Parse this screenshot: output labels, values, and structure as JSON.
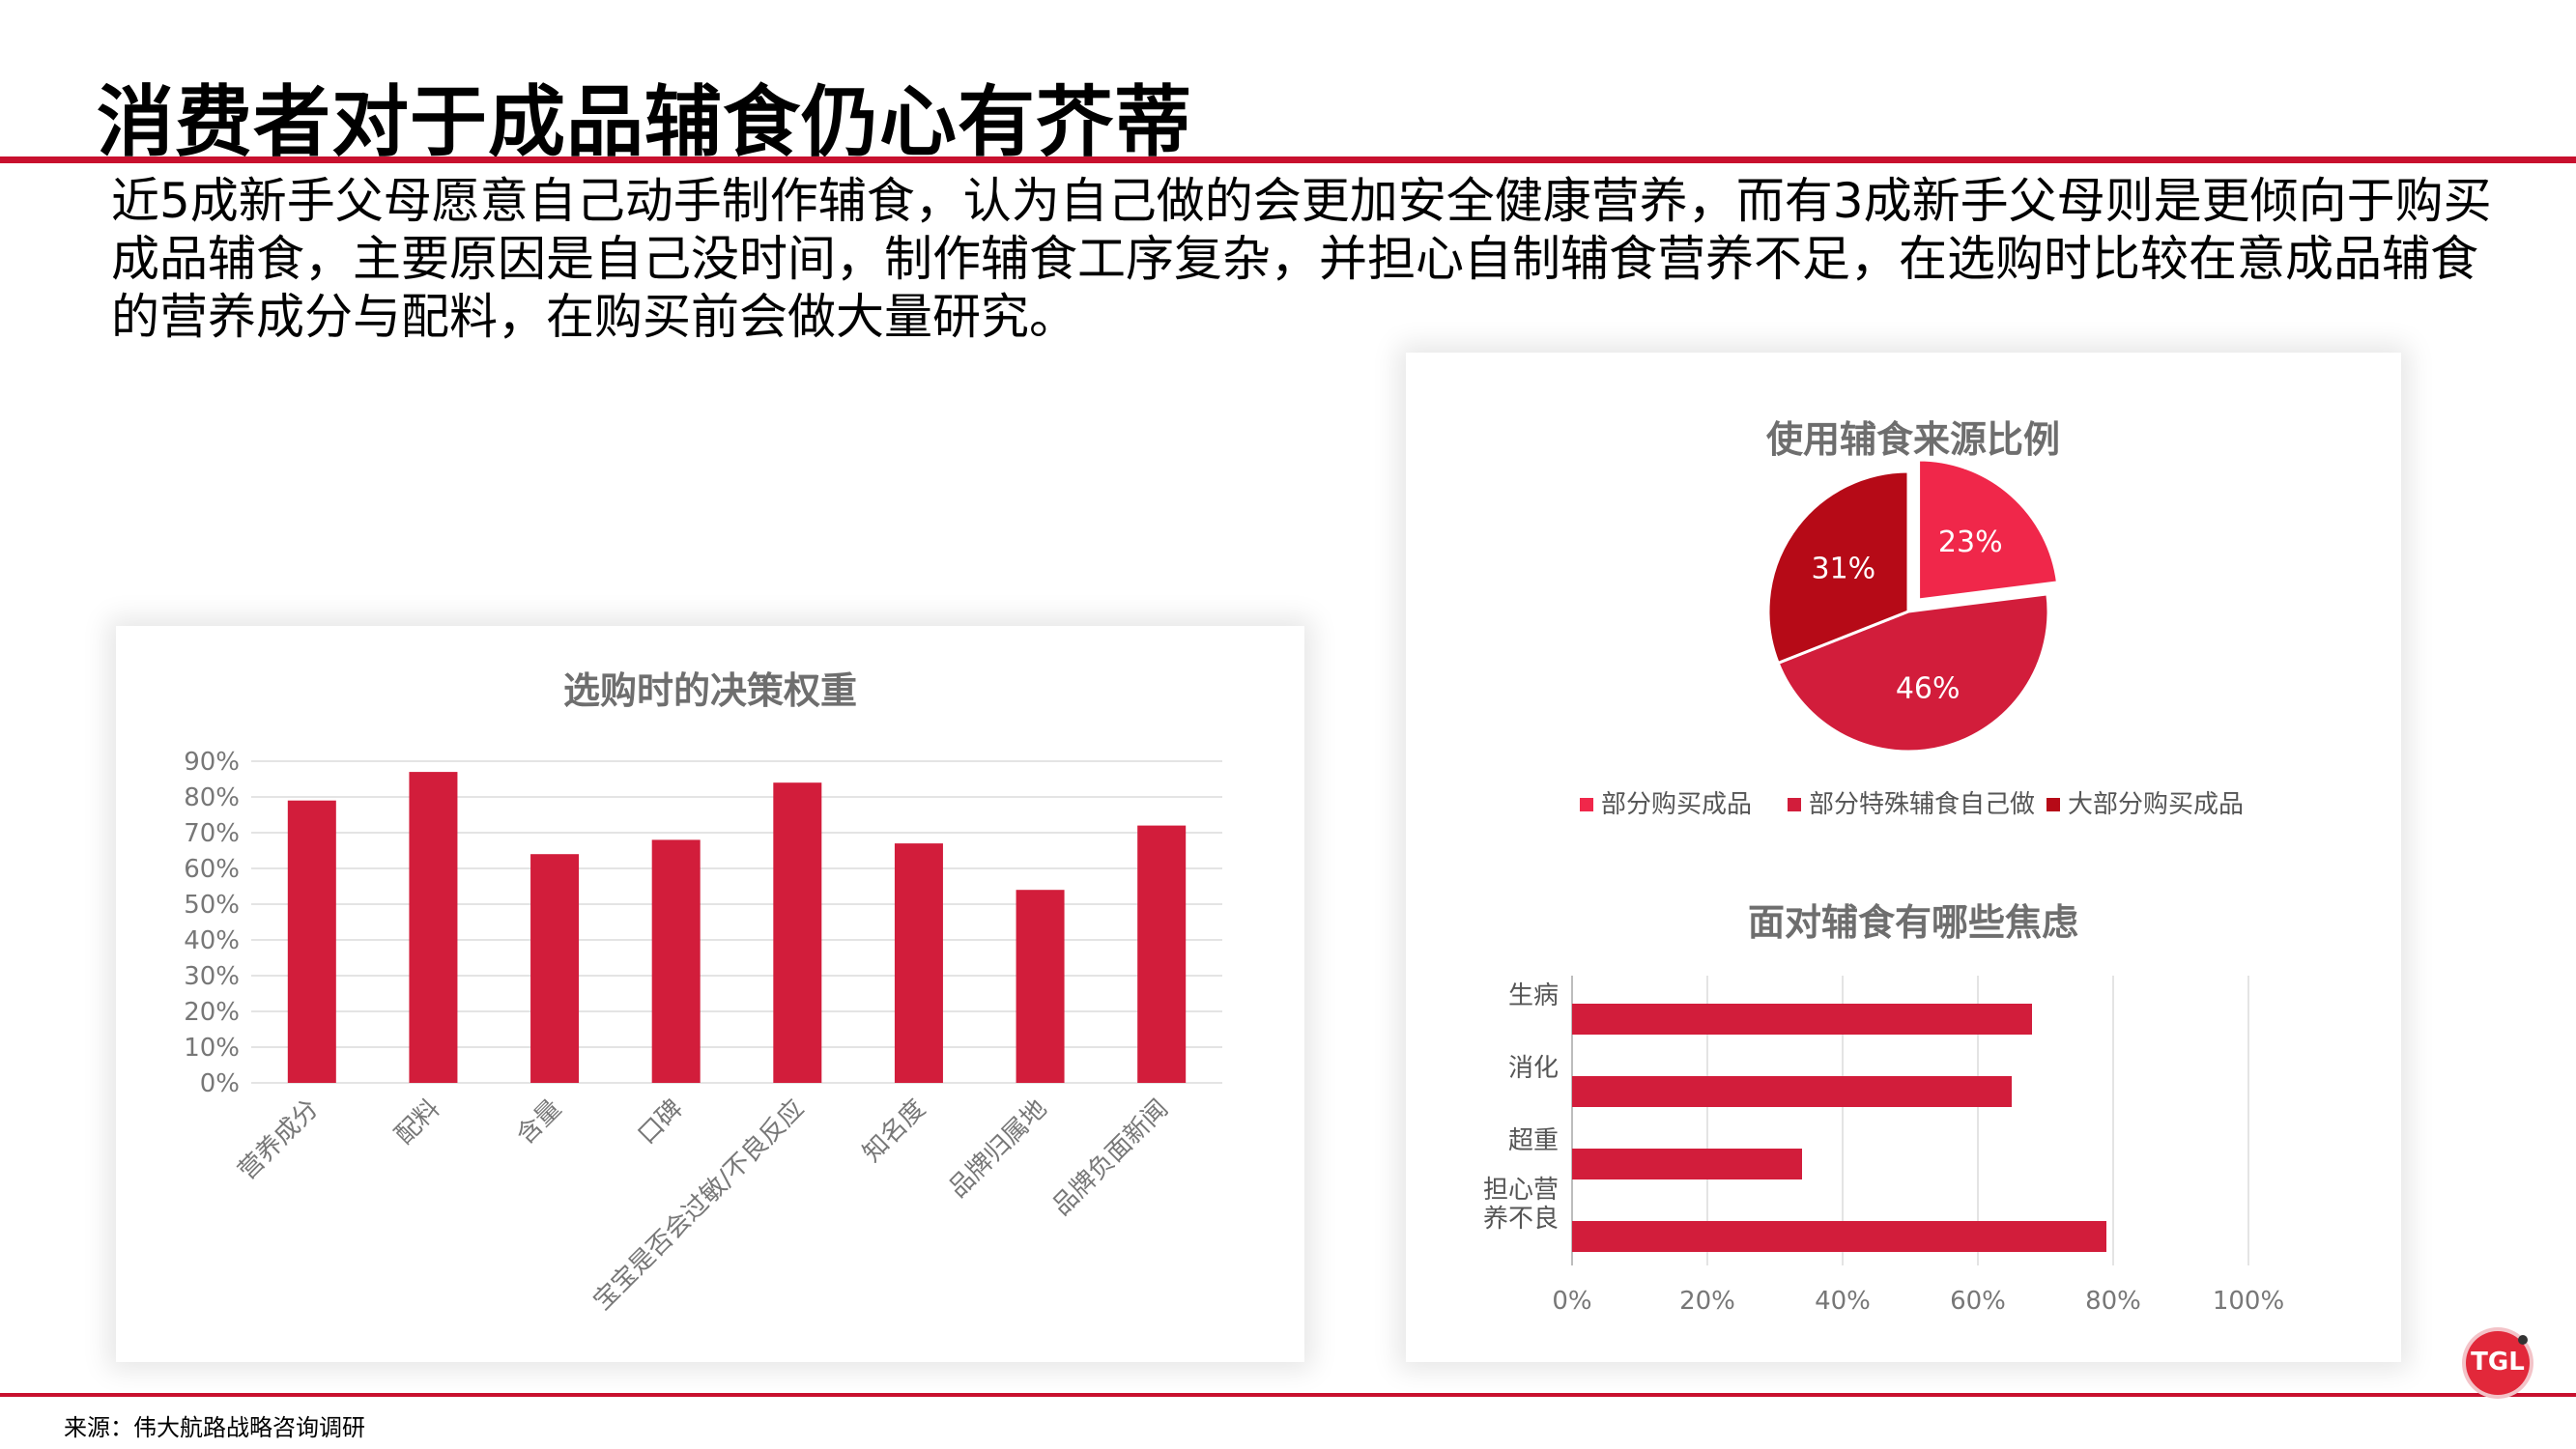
{
  "page": {
    "title": "消费者对于成品辅食仍心有芥蒂",
    "intro": "近5成新手父母愿意自己动手制作辅食，认为自己做的会更加安全健康营养，而有3成新手父母则是更倾向于购买成品辅食，主要原因是自己没时间，制作辅食工序复杂，并担心自制辅食营养不足，在选购时比较在意成品辅食的营养成分与配料，在购买前会做大量研究。",
    "source": "来源：伟大航路战略咨询调研",
    "logo_text": "TGL"
  },
  "colors": {
    "accent": "#c8102e",
    "bar": "#d21d3b",
    "pie_1": "#f0274a",
    "pie_2": "#d21d3b",
    "pie_3": "#b60a17",
    "grid": "#e4e4e4",
    "label": "#777777",
    "title_gray": "#6e6e6e"
  },
  "chart_data": [
    {
      "type": "bar",
      "title": "选购时的决策权重",
      "categories": [
        "营养成分",
        "配料",
        "含量",
        "口碑",
        "宝宝是否会过敏/不良反应",
        "知名度",
        "品牌归属地",
        "品牌负面新闻"
      ],
      "values": [
        79,
        87,
        64,
        68,
        84,
        67,
        54,
        72
      ],
      "ylim": [
        0,
        90
      ],
      "yticks": [
        0,
        10,
        20,
        30,
        40,
        50,
        60,
        70,
        80,
        90
      ],
      "tick_format": "%",
      "grid": true
    },
    {
      "type": "pie",
      "title": "使用辅食来源比例",
      "labels": [
        "部分购买成品",
        "部分特殊辅食自己做",
        "大部分购买成品"
      ],
      "values": [
        23,
        46,
        31
      ],
      "value_labels": [
        "23%",
        "46%",
        "31%"
      ],
      "legend": "bottom"
    },
    {
      "type": "bar",
      "orientation": "horizontal",
      "title": "面对辅食有哪些焦虑",
      "categories": [
        [
          "生病"
        ],
        [
          "消化"
        ],
        [
          "超重"
        ],
        [
          "担心营",
          "养不良"
        ]
      ],
      "values": [
        68,
        65,
        34,
        79
      ],
      "xlim": [
        0,
        100
      ],
      "xticks": [
        0,
        20,
        40,
        60,
        80,
        100
      ],
      "tick_format": "%",
      "grid": true
    }
  ]
}
